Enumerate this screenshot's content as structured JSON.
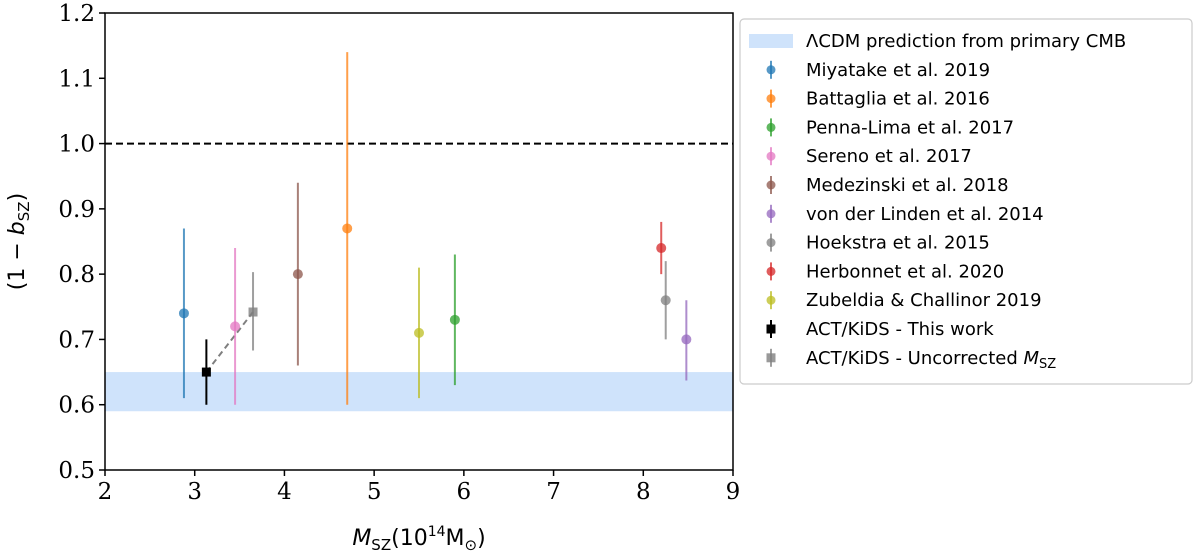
{
  "chart_data": {
    "type": "scatter",
    "xlabel": "M_SZ(10^14 M_⊙)",
    "ylabel": "(1 − b_SZ)",
    "xlim": [
      2,
      9
    ],
    "ylim": [
      0.5,
      1.2
    ],
    "xticks": [
      "2",
      "3",
      "4",
      "5",
      "6",
      "7",
      "8",
      "9"
    ],
    "yticks": [
      "0.5",
      "0.6",
      "0.7",
      "0.8",
      "0.9",
      "1.0",
      "1.1",
      "1.2"
    ],
    "grid": false,
    "legend_position": "outside-right",
    "reference_line": {
      "y": 1.0,
      "style": "dashed",
      "color": "#000000"
    },
    "band": {
      "name": "ΛCDM prediction from primary CMB",
      "y_low": 0.59,
      "y_high": 0.65,
      "color": "#cfe3fb"
    },
    "series": [
      {
        "name": "Miyatake et al. 2019",
        "color": "#1f77b4",
        "marker": "circle",
        "points": [
          {
            "x": 2.88,
            "y": 0.74,
            "ylo": 0.61,
            "yhi": 0.87
          }
        ]
      },
      {
        "name": "Battaglia et al. 2016",
        "color": "#ff7f0e",
        "marker": "circle",
        "points": [
          {
            "x": 4.7,
            "y": 0.87,
            "ylo": 0.6,
            "yhi": 1.14
          }
        ]
      },
      {
        "name": "Penna-Lima et al. 2017",
        "color": "#2ca02c",
        "marker": "circle",
        "points": [
          {
            "x": 5.9,
            "y": 0.73,
            "ylo": 0.63,
            "yhi": 0.83
          }
        ]
      },
      {
        "name": "Sereno et al. 2017",
        "color": "#e377c2",
        "marker": "circle",
        "points": [
          {
            "x": 3.45,
            "y": 0.72,
            "ylo": 0.6,
            "yhi": 0.84
          }
        ]
      },
      {
        "name": "Medezinski et al. 2018",
        "color": "#8c564b",
        "marker": "circle",
        "points": [
          {
            "x": 4.15,
            "y": 0.8,
            "ylo": 0.66,
            "yhi": 0.94
          }
        ]
      },
      {
        "name": "von der Linden et al. 2014",
        "color": "#9467bd",
        "marker": "circle",
        "points": [
          {
            "x": 8.48,
            "y": 0.7,
            "ylo": 0.637,
            "yhi": 0.76
          }
        ]
      },
      {
        "name": "Hoekstra et al. 2015",
        "color": "#7f7f7f",
        "marker": "circle",
        "points": [
          {
            "x": 8.25,
            "y": 0.76,
            "ylo": 0.7,
            "yhi": 0.82
          }
        ]
      },
      {
        "name": "Herbonnet et al. 2020",
        "color": "#d62728",
        "marker": "circle",
        "points": [
          {
            "x": 8.2,
            "y": 0.84,
            "ylo": 0.8,
            "yhi": 0.88
          }
        ]
      },
      {
        "name": "Zubeldia & Challinor 2019",
        "color": "#bcbd22",
        "marker": "circle",
        "points": [
          {
            "x": 5.5,
            "y": 0.71,
            "ylo": 0.61,
            "yhi": 0.81
          }
        ]
      },
      {
        "name": "ACT/KiDS - This work",
        "color": "#000000",
        "marker": "square",
        "opaque": true,
        "points": [
          {
            "x": 3.13,
            "y": 0.65,
            "ylo": 0.6,
            "yhi": 0.7
          }
        ]
      },
      {
        "name": "ACT/KiDS - Uncorrected M_SZ",
        "color": "#7f7f7f",
        "marker": "square",
        "points": [
          {
            "x": 3.65,
            "y": 0.742,
            "ylo": 0.683,
            "yhi": 0.803
          }
        ]
      }
    ],
    "connector": {
      "from": [
        3.13,
        0.65
      ],
      "to": [
        3.65,
        0.742
      ],
      "style": "dashed",
      "color": "#7f7f7f"
    }
  }
}
